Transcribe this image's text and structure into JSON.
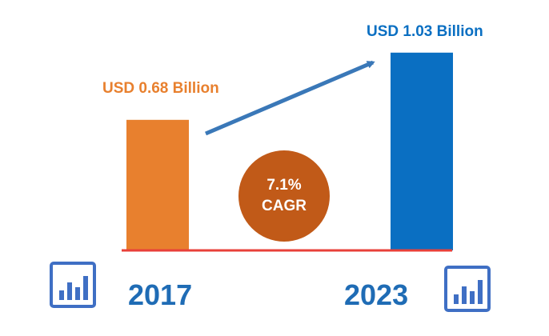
{
  "colors": {
    "bar_2017": "#E8802E",
    "bar_2023": "#0A6FC2",
    "label_2017": "#E8802E",
    "label_2023": "#0A6FC2",
    "year_text": "#1F6CB5",
    "baseline": "#E8403A",
    "arrow": "#3A78B8",
    "cagr_bubble": "#C15A18",
    "icon": "#3F6FC4"
  },
  "cagr": {
    "value": "7.1%",
    "label": "CAGR"
  },
  "icons": {
    "left": "bar-chart-icon",
    "right": "bar-chart-icon"
  },
  "chart_data": {
    "type": "bar",
    "categories": [
      "2017",
      "2023"
    ],
    "values": [
      0.68,
      1.03
    ],
    "value_labels": [
      "USD 0.68 Billion",
      "USD 1.03 Billion"
    ],
    "unit": "USD Billion",
    "ylim": [
      0,
      1.1
    ],
    "grid": false,
    "legend": "none"
  }
}
